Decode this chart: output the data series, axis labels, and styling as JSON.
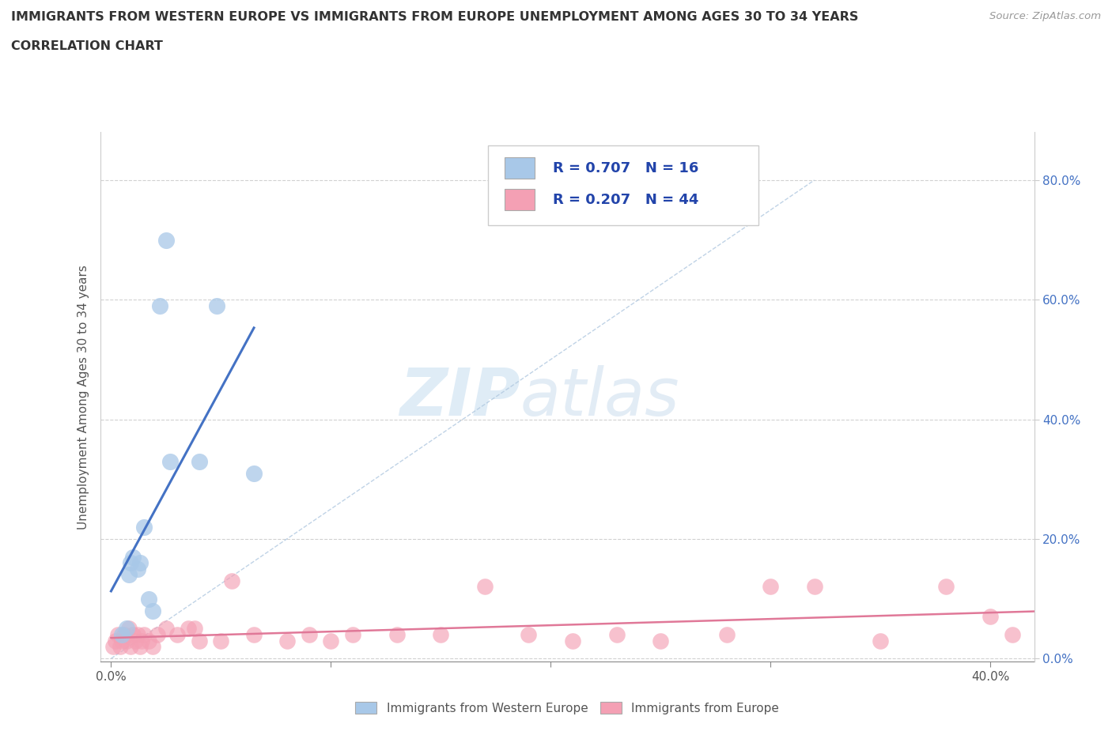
{
  "title_line1": "IMMIGRANTS FROM WESTERN EUROPE VS IMMIGRANTS FROM EUROPE UNEMPLOYMENT AMONG AGES 30 TO 34 YEARS",
  "title_line2": "CORRELATION CHART",
  "source": "Source: ZipAtlas.com",
  "ylabel": "Unemployment Among Ages 30 to 34 years",
  "legend_label1": "Immigrants from Western Europe",
  "legend_label2": "Immigrants from Europe",
  "R1": 0.707,
  "N1": 16,
  "R2": 0.207,
  "N2": 44,
  "xlim": [
    -0.005,
    0.42
  ],
  "ylim": [
    -0.005,
    0.88
  ],
  "xticks": [
    0.0,
    0.1,
    0.2,
    0.3,
    0.4
  ],
  "yticks": [
    0.0,
    0.2,
    0.4,
    0.6,
    0.8
  ],
  "color_blue": "#a8c8e8",
  "color_blue_line": "#4472c4",
  "color_pink": "#f4a0b4",
  "color_pink_line": "#e07898",
  "watermark_zip": "ZIP",
  "watermark_atlas": "atlas",
  "blue_scatter_x": [
    0.005,
    0.007,
    0.008,
    0.009,
    0.01,
    0.012,
    0.013,
    0.015,
    0.017,
    0.019,
    0.022,
    0.025,
    0.027,
    0.04,
    0.048,
    0.065
  ],
  "blue_scatter_y": [
    0.04,
    0.05,
    0.14,
    0.16,
    0.17,
    0.15,
    0.16,
    0.22,
    0.1,
    0.08,
    0.59,
    0.7,
    0.33,
    0.33,
    0.59,
    0.31
  ],
  "pink_scatter_x": [
    0.001,
    0.002,
    0.003,
    0.004,
    0.005,
    0.006,
    0.007,
    0.008,
    0.009,
    0.01,
    0.011,
    0.012,
    0.013,
    0.014,
    0.015,
    0.017,
    0.019,
    0.021,
    0.025,
    0.03,
    0.035,
    0.038,
    0.04,
    0.05,
    0.055,
    0.065,
    0.08,
    0.09,
    0.1,
    0.11,
    0.13,
    0.15,
    0.17,
    0.19,
    0.21,
    0.23,
    0.25,
    0.28,
    0.3,
    0.32,
    0.35,
    0.38,
    0.4,
    0.41
  ],
  "pink_scatter_y": [
    0.02,
    0.03,
    0.04,
    0.02,
    0.03,
    0.04,
    0.03,
    0.05,
    0.02,
    0.04,
    0.03,
    0.04,
    0.02,
    0.03,
    0.04,
    0.03,
    0.02,
    0.04,
    0.05,
    0.04,
    0.05,
    0.05,
    0.03,
    0.03,
    0.13,
    0.04,
    0.03,
    0.04,
    0.03,
    0.04,
    0.04,
    0.04,
    0.12,
    0.04,
    0.03,
    0.04,
    0.03,
    0.04,
    0.12,
    0.12,
    0.03,
    0.12,
    0.07,
    0.04
  ]
}
